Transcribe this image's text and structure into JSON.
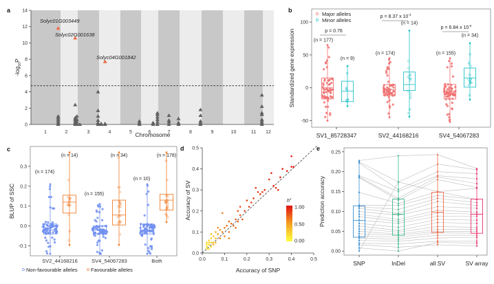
{
  "chart_data": [
    {
      "panel": "a",
      "type": "scatter",
      "title": "",
      "xlabel": "Chromosome",
      "ylabel": "-log10P",
      "ylim": [
        0,
        14
      ],
      "yticks": [
        0,
        2,
        4,
        6,
        8,
        10,
        12,
        14
      ],
      "categories": [
        "1",
        "2",
        "3",
        "4",
        "5",
        "6",
        "7",
        "8",
        "9",
        "10",
        "11",
        "12"
      ],
      "threshold": 4.75,
      "highlighted": [
        {
          "label": "Solyc01G003449",
          "chromosome": 1,
          "pos": 0.92,
          "value": 11.8
        },
        {
          "label": "Solyc02G001638",
          "chromosome": 2,
          "pos": 0.85,
          "value": 10.6
        },
        {
          "label": "Solyc04G001842",
          "chromosome": 4,
          "pos": 0.28,
          "value": 7.7
        }
      ],
      "points": [
        {
          "chromosome": 1,
          "pos": 0.92,
          "values": [
            0,
            0.2,
            0.4,
            0.6,
            0.8,
            1.0
          ]
        },
        {
          "chromosome": 2,
          "pos": 0.85,
          "values": [
            0,
            0.2,
            0.4,
            0.6,
            0.8,
            2.4
          ]
        },
        {
          "chromosome": 2,
          "pos": 0.95,
          "values": [
            0,
            0.3,
            0.6,
            1.0
          ]
        },
        {
          "chromosome": 3,
          "pos": 0.1,
          "values": [
            0
          ]
        },
        {
          "chromosome": 3,
          "pos": 0.95,
          "values": [
            0,
            0.2,
            0.5,
            1.0,
            1.7,
            4.0
          ]
        },
        {
          "chromosome": 4,
          "pos": 0.1,
          "values": [
            0,
            0.1
          ]
        },
        {
          "chromosome": 4,
          "pos": 0.28,
          "values": [
            0,
            0.1
          ]
        },
        {
          "chromosome": 5,
          "pos": 0.92,
          "values": [
            0,
            0.2,
            0.4
          ]
        },
        {
          "chromosome": 6,
          "pos": 0.7,
          "values": [
            0,
            0.2
          ]
        },
        {
          "chromosome": 6,
          "pos": 0.95,
          "values": [
            0,
            0.3,
            0.6,
            0.9,
            1.2,
            1.4
          ]
        },
        {
          "chromosome": 7,
          "pos": 0.5,
          "values": [
            0,
            0.3,
            0.5,
            1.1
          ]
        },
        {
          "chromosome": 7,
          "pos": 0.95,
          "values": [
            0,
            0.2,
            0.7
          ]
        },
        {
          "chromosome": 8,
          "pos": 0.95,
          "values": [
            0,
            0.2,
            0.4,
            1.1,
            1.8
          ]
        },
        {
          "chromosome": 11,
          "pos": 0.95,
          "values": [
            0,
            0.2,
            0.4,
            0.6,
            1.2,
            1.4,
            2.2,
            3.6
          ]
        }
      ],
      "colors": {
        "band_dark": "#c8c8c8",
        "band_light": "#ececec",
        "point": "#606060",
        "highlight": "#ee6a45"
      }
    },
    {
      "panel": "b",
      "type": "box",
      "xlabel": "",
      "ylabel": "Standardized gene expression",
      "ylim": [
        -60,
        120
      ],
      "yticks": [
        -50,
        0,
        50,
        100
      ],
      "categories": [
        "SV1_85728347",
        "SV2_44168216",
        "SV4_54067283"
      ],
      "legend": {
        "position": "top-left",
        "entries": [
          "Major alleles",
          "Minor alleles"
        ]
      },
      "series": [
        {
          "name": "Major alleles",
          "color": "#f07070",
          "boxes": [
            {
              "n": 177,
              "q1": -17,
              "median": 0,
              "q3": 15,
              "min": -50,
              "max": 65
            },
            {
              "n": 174,
              "q1": -12,
              "median": -3,
              "q3": 5,
              "min": -45,
              "max": 45
            },
            {
              "n": 155,
              "q1": -17,
              "median": -6,
              "q3": 5,
              "min": -52,
              "max": 45
            }
          ]
        },
        {
          "name": "Minor alleles",
          "color": "#25c2c8",
          "boxes": [
            {
              "n": 9,
              "q1": -21,
              "median": -5,
              "q3": 10,
              "min": -28,
              "max": 33
            },
            {
              "n": 14,
              "q1": -4,
              "median": 5,
              "q3": 24,
              "min": -44,
              "max": 87
            },
            {
              "n": 34,
              "q1": 1,
              "median": 15,
              "q3": 30,
              "min": -18,
              "max": 68
            }
          ]
        }
      ],
      "annotations": [
        {
          "group": "SV1_85728347",
          "text": "p = 0.76"
        },
        {
          "group": "SV2_44168216",
          "text": "p = 8.37 x 10",
          "exponent": "-3"
        },
        {
          "group": "SV4_54067283",
          "text": "p = 6.84 x 10",
          "exponent": "-6"
        }
      ]
    },
    {
      "panel": "c",
      "type": "box",
      "xlabel": "",
      "ylabel": "BLUP of SSC",
      "ylim": [
        -0.15,
        0.4
      ],
      "yticks": [
        -0.1,
        0.0,
        0.1,
        0.2,
        0.3
      ],
      "categories": [
        "SV2_44168216",
        "SV4_54067283",
        "Both"
      ],
      "legend": {
        "position": "bottom",
        "entries": [
          "Non-favourable alleles",
          "Favourable alleles"
        ]
      },
      "series": [
        {
          "name": "Non-favourable alleles",
          "color": "#6f8ff0",
          "boxes": [
            {
              "n": 174,
              "q1": -0.04,
              "median": -0.02,
              "q3": 0.01,
              "min": -0.14,
              "max": 0.21
            },
            {
              "n": 155,
              "q1": -0.04,
              "median": -0.02,
              "q3": 0.0,
              "min": -0.14,
              "max": 0.11
            },
            {
              "n": 10,
              "q1": -0.04,
              "median": -0.02,
              "q3": 0.01,
              "min": -0.14,
              "max": 0.21
            }
          ]
        },
        {
          "name": "Favourable alleles",
          "color": "#f08030",
          "boxes": [
            {
              "n": 14,
              "q1": 0.065,
              "median": 0.12,
              "q3": 0.155,
              "min": -0.095,
              "max": 0.37
            },
            {
              "n": 34,
              "q1": 0.005,
              "median": 0.055,
              "q3": 0.13,
              "min": -0.095,
              "max": 0.37
            },
            {
              "n": 178,
              "q1": 0.08,
              "median": 0.13,
              "q3": 0.16,
              "min": 0.02,
              "max": 0.37
            }
          ]
        }
      ]
    },
    {
      "panel": "d",
      "type": "scatter",
      "xlabel": "Accuracy of SNP",
      "ylabel": "Accuracy of SV",
      "xlim": [
        0,
        0.5
      ],
      "ylim": [
        0,
        0.5
      ],
      "xticks": [
        0.0,
        0.1,
        0.2,
        0.3,
        0.4,
        0.5
      ],
      "yticks": [
        0.0,
        0.1,
        0.2,
        0.3,
        0.4,
        0.5
      ],
      "reference_line": "y = x",
      "colorbar": {
        "label": "h2",
        "ticks": [
          "1.00",
          "0.50",
          "0.00"
        ],
        "low": "#ffff30",
        "high": "#e01010"
      },
      "points": [
        [
          0.02,
          0.02,
          0.05
        ],
        [
          0.03,
          0.04,
          0.05
        ],
        [
          0.02,
          0.05,
          0.1
        ],
        [
          0.03,
          0.06,
          0.1
        ],
        [
          0.04,
          0.05,
          0.1
        ],
        [
          0.02,
          0.03,
          0.05
        ],
        [
          0.04,
          0.07,
          0.15
        ],
        [
          0.05,
          0.08,
          0.2
        ],
        [
          0.03,
          0.02,
          0.1
        ],
        [
          0.05,
          0.05,
          0.2
        ],
        [
          0.06,
          0.07,
          0.25
        ],
        [
          0.04,
          0.09,
          0.2
        ],
        [
          0.06,
          0.1,
          0.3
        ],
        [
          0.07,
          0.09,
          0.35
        ],
        [
          0.08,
          0.11,
          0.4
        ],
        [
          0.07,
          0.12,
          0.45
        ],
        [
          0.09,
          0.1,
          0.5
        ],
        [
          0.08,
          0.07,
          0.45
        ],
        [
          0.09,
          0.19,
          0.5
        ],
        [
          0.1,
          0.12,
          0.55
        ],
        [
          0.11,
          0.13,
          0.55
        ],
        [
          0.12,
          0.15,
          0.6
        ],
        [
          0.12,
          0.1,
          0.55
        ],
        [
          0.13,
          0.14,
          0.6
        ],
        [
          0.14,
          0.13,
          0.6
        ],
        [
          0.15,
          0.16,
          0.65
        ],
        [
          0.16,
          0.15,
          0.65
        ],
        [
          0.17,
          0.18,
          0.7
        ],
        [
          0.16,
          0.2,
          0.7
        ],
        [
          0.17,
          0.22,
          0.75
        ],
        [
          0.18,
          0.16,
          0.7
        ],
        [
          0.19,
          0.2,
          0.75
        ],
        [
          0.2,
          0.25,
          0.8
        ],
        [
          0.21,
          0.22,
          0.8
        ],
        [
          0.22,
          0.24,
          0.8
        ],
        [
          0.23,
          0.26,
          0.8
        ],
        [
          0.24,
          0.31,
          0.85
        ],
        [
          0.25,
          0.29,
          0.85
        ],
        [
          0.26,
          0.28,
          0.85
        ],
        [
          0.27,
          0.29,
          0.85
        ],
        [
          0.28,
          0.3,
          0.9
        ],
        [
          0.3,
          0.35,
          0.9
        ],
        [
          0.31,
          0.38,
          0.9
        ],
        [
          0.32,
          0.32,
          0.9
        ],
        [
          0.33,
          0.31,
          0.9
        ],
        [
          0.34,
          0.3,
          0.9
        ],
        [
          0.35,
          0.36,
          0.95
        ],
        [
          0.36,
          0.4,
          0.95
        ],
        [
          0.38,
          0.39,
          0.95
        ],
        [
          0.4,
          0.41,
          1.0
        ],
        [
          0.41,
          0.41,
          1.0
        ],
        [
          0.4,
          0.46,
          1.0
        ],
        [
          0.1,
          0.08,
          0.5
        ],
        [
          0.12,
          0.07,
          0.5
        ],
        [
          0.15,
          0.12,
          0.6
        ],
        [
          0.05,
          0.04,
          0.2
        ],
        [
          0.06,
          0.05,
          0.25
        ],
        [
          0.03,
          0.05,
          0.1
        ],
        [
          0.02,
          0.04,
          0.05
        ],
        [
          0.04,
          0.03,
          0.1
        ]
      ]
    },
    {
      "panel": "e",
      "type": "box",
      "xlabel": "",
      "ylabel": "Prediction accuracy",
      "ylim": [
        -0.01,
        0.26
      ],
      "yticks": [
        0.0,
        0.05,
        0.1,
        0.15,
        0.2,
        0.25
      ],
      "categories": [
        "SNP",
        "InDel",
        "all SV",
        "SV array"
      ],
      "colors": [
        "#3b8fd0",
        "#3cb88a",
        "#f06a4a",
        "#e8306a"
      ],
      "boxes": [
        {
          "q1": 0.035,
          "median": 0.077,
          "q3": 0.114,
          "min": 0.0,
          "max": 0.23
        },
        {
          "q1": 0.04,
          "median": 0.093,
          "q3": 0.131,
          "min": 0.0,
          "max": 0.24
        },
        {
          "q1": 0.047,
          "median": 0.098,
          "q3": 0.148,
          "min": 0.015,
          "max": 0.243
        },
        {
          "q1": 0.045,
          "median": 0.093,
          "q3": 0.131,
          "min": 0.012,
          "max": 0.208
        }
      ],
      "paired_lines": [
        [
          0.228,
          0.24,
          0.243,
          0.208
        ],
        [
          0.225,
          0.174,
          0.219,
          0.205
        ],
        [
          0.222,
          0.155,
          0.2,
          0.195
        ],
        [
          0.19,
          0.15,
          0.19,
          0.182
        ],
        [
          0.187,
          0.133,
          0.187,
          0.17
        ],
        [
          0.185,
          0.128,
          0.18,
          0.16
        ],
        [
          0.148,
          0.12,
          0.15,
          0.158
        ],
        [
          0.116,
          0.115,
          0.14,
          0.13
        ],
        [
          0.112,
          0.105,
          0.133,
          0.122
        ],
        [
          0.108,
          0.095,
          0.125,
          0.115
        ],
        [
          0.1,
          0.09,
          0.112,
          0.108
        ],
        [
          0.093,
          0.08,
          0.103,
          0.098
        ],
        [
          0.087,
          0.075,
          0.096,
          0.093
        ],
        [
          0.078,
          0.07,
          0.088,
          0.088
        ],
        [
          0.07,
          0.06,
          0.08,
          0.078
        ],
        [
          0.063,
          0.052,
          0.072,
          0.07
        ],
        [
          0.056,
          0.048,
          0.062,
          0.06
        ],
        [
          0.05,
          0.043,
          0.055,
          0.055
        ],
        [
          0.044,
          0.04,
          0.05,
          0.05
        ],
        [
          0.038,
          0.035,
          0.046,
          0.045
        ],
        [
          0.033,
          0.03,
          0.04,
          0.04
        ],
        [
          0.027,
          0.025,
          0.033,
          0.035
        ],
        [
          0.02,
          0.018,
          0.025,
          0.025
        ],
        [
          0.016,
          0.01,
          0.016,
          0.013
        ],
        [
          0.0,
          0.174,
          0.15,
          0.13
        ],
        [
          0.008,
          0.0,
          0.022,
          0.02
        ]
      ]
    }
  ],
  "panel_labels": [
    "a",
    "b",
    "c",
    "d",
    "e"
  ]
}
